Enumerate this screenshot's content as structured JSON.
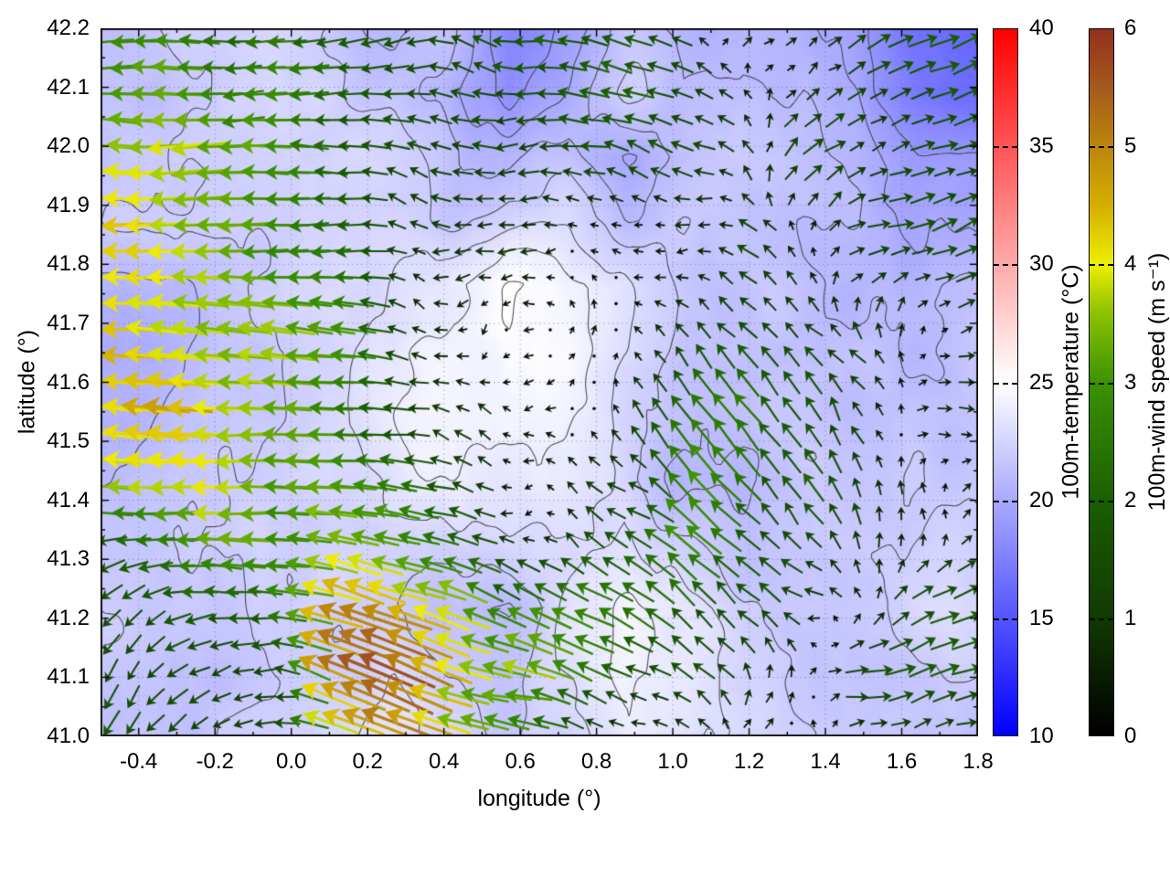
{
  "chart_data": {
    "type": "quiver+heatmap+contour",
    "xlabel": "longitude (°)",
    "ylabel": "latitude (°)",
    "x_range": [
      -0.5,
      1.8
    ],
    "y_range": [
      41.0,
      42.2
    ],
    "x_major_ticks": [
      -0.4,
      -0.2,
      0.0,
      0.2,
      0.4,
      0.6,
      0.8,
      1.0,
      1.2,
      1.4,
      1.6,
      1.8
    ],
    "x_tick_labels": [
      "-0.4",
      "-0.2",
      "0.0",
      "0.2",
      "0.4",
      "0.6",
      "0.8",
      "1.0",
      "1.2",
      "1.4",
      "1.6",
      "1.8"
    ],
    "x_minor_step": 0.1,
    "y_major_ticks": [
      41.0,
      41.1,
      41.2,
      41.3,
      41.4,
      41.5,
      41.6,
      41.7,
      41.8,
      41.9,
      42.0,
      42.1,
      42.2
    ],
    "y_tick_labels": [
      "41.0",
      "41.1",
      "41.2",
      "41.3",
      "41.4",
      "41.5",
      "41.6",
      "41.7",
      "41.8",
      "41.9",
      "42.0",
      "42.1",
      "42.2"
    ],
    "y_minor_step": 0.05,
    "grid": "dotted-at-major-ticks",
    "contour_levels": [
      19,
      20,
      21,
      22,
      23,
      24,
      25
    ],
    "contour_color": "#3c3c3c",
    "temperature": {
      "label": "100m-temperature (°C)",
      "range": [
        10,
        40
      ],
      "ticks": [
        10,
        15,
        20,
        25,
        30,
        35,
        40
      ],
      "tick_labels": [
        "10",
        "15",
        "20",
        "25",
        "30",
        "35",
        "40"
      ],
      "colormap": [
        [
          10,
          "#0000ff"
        ],
        [
          25,
          "#ffffff"
        ],
        [
          40,
          "#ff0000"
        ]
      ],
      "grid_lons": [
        -0.5,
        -0.347,
        -0.193,
        -0.04,
        0.113,
        0.267,
        0.42,
        0.573,
        0.727,
        0.88,
        1.033,
        1.187,
        1.34,
        1.493,
        1.647,
        1.8
      ],
      "grid_lats": [
        42.2,
        42.09,
        41.98,
        41.87,
        41.76,
        41.65,
        41.55,
        41.44,
        41.33,
        41.22,
        41.11,
        41.0
      ],
      "values": [
        [
          21.5,
          22.0,
          21.5,
          22.5,
          22.0,
          21.0,
          21.5,
          18.0,
          19.5,
          21.5,
          20.5,
          21.0,
          20.5,
          19.5,
          16.5,
          15.5
        ],
        [
          21.5,
          21.0,
          22.0,
          22.5,
          22.0,
          21.5,
          21.0,
          18.5,
          20.0,
          22.0,
          21.0,
          21.5,
          21.0,
          20.0,
          17.0,
          16.0
        ],
        [
          21.0,
          21.5,
          22.0,
          22.0,
          22.5,
          22.0,
          21.5,
          21.0,
          21.5,
          19.5,
          21.0,
          22.0,
          21.5,
          20.5,
          19.0,
          18.5
        ],
        [
          21.5,
          22.0,
          22.5,
          22.0,
          22.5,
          22.5,
          22.0,
          23.0,
          23.0,
          21.0,
          22.0,
          21.5,
          21.0,
          21.0,
          19.5,
          19.5
        ],
        [
          20.5,
          21.0,
          22.0,
          22.5,
          23.0,
          23.5,
          24.2,
          25.4,
          24.6,
          23.5,
          22.0,
          21.5,
          21.5,
          21.0,
          20.5,
          21.0
        ],
        [
          20.0,
          20.5,
          21.5,
          22.0,
          23.0,
          24.0,
          24.6,
          25.0,
          24.6,
          23.5,
          22.0,
          21.5,
          21.0,
          21.5,
          21.0,
          21.5
        ],
        [
          20.5,
          21.0,
          21.5,
          22.0,
          22.5,
          24.0,
          24.6,
          24.6,
          24.0,
          23.0,
          21.5,
          21.0,
          21.5,
          21.5,
          21.5,
          21.5
        ],
        [
          21.0,
          21.5,
          21.5,
          22.0,
          22.5,
          23.5,
          24.2,
          24.0,
          23.5,
          22.5,
          21.0,
          20.5,
          21.5,
          22.0,
          22.0,
          22.0
        ],
        [
          21.5,
          21.5,
          22.0,
          22.0,
          22.5,
          23.0,
          22.5,
          23.0,
          22.5,
          23.5,
          22.5,
          21.5,
          22.0,
          22.5,
          22.0,
          22.0
        ],
        [
          21.5,
          21.5,
          21.5,
          22.0,
          22.5,
          22.5,
          21.5,
          21.0,
          23.0,
          24.5,
          24.0,
          22.5,
          22.0,
          22.0,
          22.5,
          22.0
        ],
        [
          21.5,
          21.5,
          21.5,
          22.0,
          22.0,
          23.0,
          22.0,
          21.5,
          23.5,
          24.5,
          24.0,
          22.5,
          21.5,
          21.5,
          22.0,
          22.0
        ],
        [
          21.5,
          21.5,
          22.0,
          22.0,
          22.5,
          23.5,
          23.0,
          22.0,
          23.0,
          24.0,
          23.5,
          22.0,
          21.5,
          21.5,
          21.5,
          21.5
        ]
      ]
    },
    "wind": {
      "label": "100m-wind speed (m s⁻¹)",
      "range": [
        0,
        6
      ],
      "ticks": [
        0,
        1,
        2,
        3,
        4,
        5,
        6
      ],
      "tick_labels": [
        "0",
        "1",
        "2",
        "3",
        "4",
        "5",
        "6"
      ],
      "colormap": [
        [
          0,
          "#000000"
        ],
        [
          1,
          "#113a00"
        ],
        [
          2,
          "#1a5f00"
        ],
        [
          3,
          "#3c9200"
        ],
        [
          3.6,
          "#8ec300"
        ],
        [
          4,
          "#eeee00"
        ],
        [
          4.5,
          "#d4af00"
        ],
        [
          5,
          "#bc860a"
        ],
        [
          5.5,
          "#a55a1c"
        ],
        [
          6,
          "#93301e"
        ]
      ],
      "arrow_cols": 40,
      "arrow_rows": 27,
      "grid_lons": [
        -0.5,
        -0.347,
        -0.193,
        -0.04,
        0.113,
        0.267,
        0.42,
        0.573,
        0.727,
        0.88,
        1.033,
        1.187,
        1.34,
        1.493,
        1.647,
        1.8
      ],
      "grid_lats": [
        42.2,
        42.09,
        41.98,
        41.87,
        41.76,
        41.65,
        41.55,
        41.44,
        41.33,
        41.22,
        41.11,
        41.0
      ],
      "u": [
        [
          -3.2,
          -3.0,
          -2.8,
          -2.5,
          -2.0,
          -1.8,
          -1.5,
          -1.5,
          -1.8,
          -1.5,
          -1.0,
          0.5,
          1.0,
          1.5,
          1.8,
          2.0
        ],
        [
          -3.5,
          -3.3,
          -3.0,
          -2.8,
          -2.2,
          -1.8,
          -1.5,
          -1.2,
          -1.5,
          -1.8,
          -1.2,
          -0.5,
          0.8,
          1.2,
          1.5,
          1.8
        ],
        [
          -4.0,
          -3.8,
          -3.5,
          -3.0,
          -2.0,
          -1.5,
          -1.0,
          -0.8,
          -1.0,
          -1.2,
          -0.8,
          -0.5,
          0.5,
          1.0,
          1.5,
          1.5
        ],
        [
          -4.2,
          -4.0,
          -3.5,
          -3.0,
          -2.2,
          -1.5,
          -0.8,
          -0.5,
          -0.5,
          -0.8,
          -0.8,
          -0.5,
          0.3,
          0.8,
          1.2,
          1.2
        ],
        [
          -4.0,
          -4.2,
          -3.8,
          -3.2,
          -2.5,
          -1.5,
          -0.5,
          -0.2,
          -0.3,
          -0.5,
          -0.8,
          -1.0,
          -0.5,
          0.5,
          0.8,
          1.0
        ],
        [
          -4.5,
          -4.5,
          -4.0,
          -3.5,
          -2.8,
          -1.8,
          -0.5,
          -0.2,
          -0.2,
          -0.3,
          -0.8,
          -1.5,
          -1.0,
          -0.5,
          0.5,
          0.8
        ],
        [
          -4.5,
          -4.3,
          -4.0,
          -3.5,
          -3.0,
          -2.0,
          -0.8,
          -0.3,
          -0.2,
          -0.5,
          -1.5,
          -2.0,
          -1.2,
          -0.5,
          0.3,
          0.5
        ],
        [
          -3.8,
          -4.0,
          -3.8,
          -3.5,
          -3.2,
          -2.5,
          -1.0,
          -0.3,
          -0.3,
          -0.8,
          -2.0,
          -2.2,
          -1.0,
          -0.5,
          0.2,
          0.3
        ],
        [
          -2.0,
          -2.5,
          -2.8,
          -3.0,
          -3.2,
          -3.0,
          -2.0,
          -0.5,
          -0.5,
          -1.5,
          -2.5,
          -1.8,
          -0.8,
          -0.3,
          0.3,
          0.5
        ],
        [
          -1.2,
          -1.2,
          -1.5,
          -2.0,
          -4.0,
          -4.5,
          -3.5,
          -2.0,
          -2.5,
          -2.5,
          -1.5,
          -1.0,
          -0.5,
          0.5,
          1.0,
          1.5
        ],
        [
          -1.0,
          -1.0,
          -1.2,
          -1.5,
          -4.5,
          -5.0,
          -4.0,
          -3.0,
          -2.8,
          -2.0,
          -1.0,
          -0.5,
          0.5,
          1.5,
          2.0,
          2.2
        ],
        [
          -1.0,
          -1.0,
          -1.0,
          -1.2,
          -3.5,
          -4.5,
          -3.5,
          -2.5,
          -1.5,
          -0.8,
          -0.3,
          0.2,
          0.3,
          0.5,
          0.8,
          1.0
        ]
      ],
      "v": [
        [
          0.2,
          0.2,
          0.1,
          0.1,
          0.0,
          0.0,
          0.2,
          0.3,
          0.2,
          0.3,
          0.5,
          0.5,
          0.8,
          0.8,
          1.0,
          0.8
        ],
        [
          0.2,
          0.1,
          0.1,
          0.0,
          0.0,
          0.2,
          0.3,
          0.2,
          0.2,
          0.2,
          0.4,
          0.5,
          0.6,
          0.8,
          0.8,
          1.0
        ],
        [
          0.3,
          0.2,
          0.2,
          0.1,
          0.2,
          0.3,
          0.3,
          0.2,
          0.2,
          0.3,
          0.3,
          0.4,
          0.5,
          0.6,
          0.8,
          0.8
        ],
        [
          0.2,
          0.2,
          0.2,
          0.2,
          0.2,
          0.2,
          0.2,
          0.2,
          0.2,
          0.2,
          0.3,
          0.5,
          0.5,
          0.5,
          0.5,
          0.5
        ],
        [
          0.2,
          0.3,
          0.2,
          0.2,
          0.2,
          0.2,
          0.1,
          0.1,
          0.1,
          0.2,
          0.5,
          1.0,
          0.8,
          0.5,
          0.5,
          0.5
        ],
        [
          0.3,
          0.3,
          0.3,
          0.2,
          0.2,
          0.2,
          0.1,
          0.1,
          0.1,
          0.3,
          1.0,
          1.5,
          1.2,
          0.8,
          0.5,
          0.5
        ],
        [
          0.3,
          0.3,
          0.3,
          0.3,
          0.3,
          0.3,
          0.2,
          0.1,
          0.2,
          0.5,
          1.5,
          2.0,
          1.5,
          1.0,
          0.5,
          0.3
        ],
        [
          0.2,
          0.3,
          0.3,
          0.3,
          0.5,
          0.5,
          0.3,
          0.2,
          0.3,
          0.8,
          2.0,
          2.2,
          1.5,
          1.0,
          0.5,
          0.3
        ],
        [
          -0.3,
          0.0,
          0.2,
          0.5,
          0.8,
          0.8,
          0.5,
          0.3,
          0.5,
          1.0,
          1.8,
          1.5,
          1.0,
          0.8,
          0.5,
          0.3
        ],
        [
          -0.8,
          -0.8,
          -0.5,
          0.3,
          1.2,
          1.5,
          1.2,
          0.8,
          1.0,
          1.0,
          1.2,
          0.8,
          0.5,
          0.5,
          0.8,
          0.8
        ],
        [
          -1.0,
          -1.0,
          -0.8,
          -0.3,
          1.5,
          1.8,
          1.5,
          1.0,
          1.2,
          1.0,
          0.8,
          0.5,
          0.3,
          0.3,
          0.5,
          0.5
        ],
        [
          -1.2,
          -1.0,
          -0.8,
          -0.5,
          1.0,
          1.5,
          1.2,
          0.8,
          0.5,
          0.3,
          0.2,
          0.1,
          0.1,
          0.1,
          0.2,
          0.2
        ]
      ]
    }
  }
}
